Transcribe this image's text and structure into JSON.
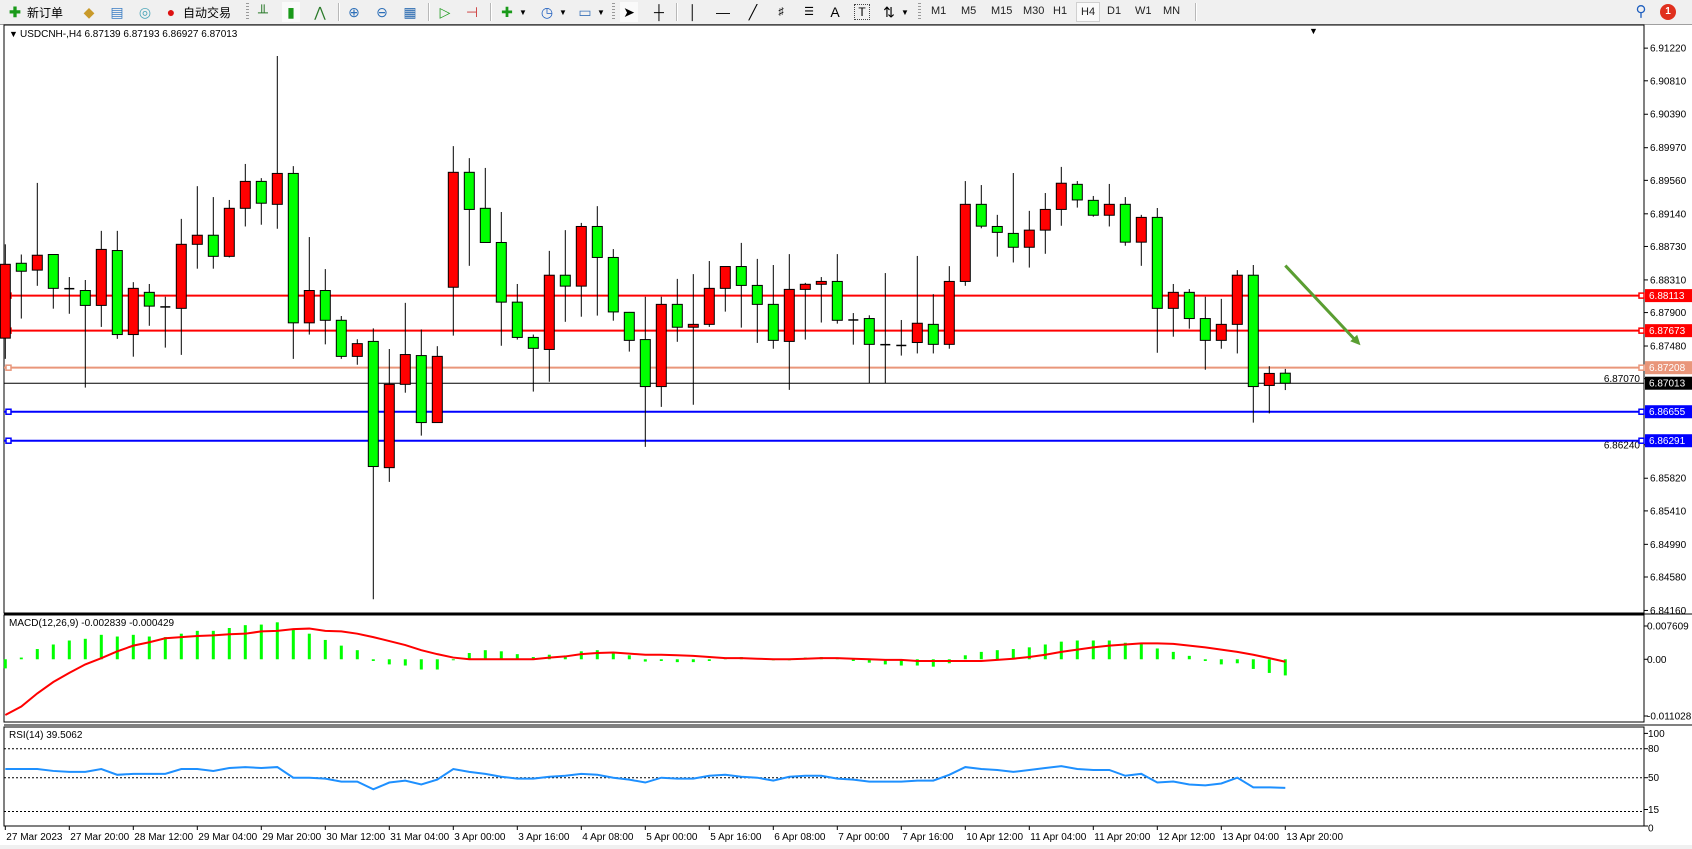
{
  "toolbar": {
    "new_order": "新订单",
    "auto_trading": "自动交易",
    "timeframes": [
      "M1",
      "M5",
      "M15",
      "M30",
      "H1",
      "H4",
      "D1",
      "W1",
      "MN"
    ],
    "selected_timeframe": "H4",
    "notification_count": "1",
    "icons": [
      "new-order-icon",
      "market-watch-icon",
      "navigator-icon",
      "signals-icon",
      "auto-trading-icon",
      "bar-chart-icon",
      "candlestick-icon",
      "line-chart-icon",
      "zoom-in-icon",
      "zoom-out-icon",
      "tile-windows-icon",
      "auto-scroll-icon",
      "chart-shift-icon",
      "indicators-icon",
      "periods-icon",
      "templates-icon",
      "cursor-icon",
      "crosshair-icon",
      "vertical-line-icon",
      "horizontal-line-icon",
      "trendline-icon",
      "fibonacci-icon",
      "fibonacci-fan-icon",
      "text-icon",
      "text-label-icon",
      "arrows-icon",
      "search-icon",
      "notification-icon"
    ]
  },
  "chart_data": {
    "type": "candlestick",
    "symbol_header": "USDCNH-,H4  6.87139 6.87193 6.86927 6.87013",
    "colors": {
      "bull": "#ff0000",
      "bear": "#00ff00",
      "outline": "#000000"
    },
    "ylim": [
      6.84128,
      6.91498
    ],
    "price_ticks": [
      "6.91220",
      "6.90810",
      "6.90390",
      "6.89970",
      "6.89560",
      "6.89140",
      "6.88730",
      "6.88310",
      "6.87900",
      "6.87480",
      "6.87070",
      "6.86240",
      "6.85820",
      "6.85410",
      "6.84990",
      "6.84580",
      "6.84160"
    ],
    "ohlc": [
      [
        6.87579,
        6.88757,
        6.87319,
        6.88506
      ],
      [
        6.88519,
        6.88629,
        6.87825,
        6.88419
      ],
      [
        6.88433,
        6.89528,
        6.88236,
        6.8862
      ],
      [
        6.88629,
        6.88629,
        6.87949,
        6.88204
      ],
      [
        6.882,
        6.88346,
        6.87885,
        6.882
      ],
      [
        6.88177,
        6.88309,
        6.86958,
        6.8799
      ],
      [
        6.8799,
        6.88926,
        6.8772,
        6.88693
      ],
      [
        6.88679,
        6.88926,
        6.8757,
        6.87624
      ],
      [
        6.87624,
        6.88282,
        6.87346,
        6.88204
      ],
      [
        6.88154,
        6.88259,
        6.87734,
        6.87981
      ],
      [
        6.87971,
        6.88099,
        6.8746,
        6.87971
      ],
      [
        6.87953,
        6.89076,
        6.87369,
        6.88757
      ],
      [
        6.88757,
        6.89487,
        6.88451,
        6.88871
      ],
      [
        6.88871,
        6.8935,
        6.88451,
        6.88606
      ],
      [
        6.88606,
        6.89314,
        6.88592,
        6.89209
      ],
      [
        6.89209,
        6.89766,
        6.88981,
        6.89547
      ],
      [
        6.89547,
        6.89588,
        6.89003,
        6.89273
      ],
      [
        6.89259,
        6.91122,
        6.88953,
        6.89647
      ],
      [
        6.89647,
        6.89738,
        6.87319,
        6.87771
      ],
      [
        6.87771,
        6.88848,
        6.87624,
        6.88177
      ],
      [
        6.88177,
        6.88446,
        6.87501,
        6.87803
      ],
      [
        6.87803,
        6.87857,
        6.87319,
        6.8735
      ],
      [
        6.8735,
        6.87565,
        6.87245,
        6.8751
      ],
      [
        6.87538,
        6.87702,
        6.843,
        6.85967
      ],
      [
        6.85953,
        6.87442,
        6.85775,
        6.86999
      ],
      [
        6.86999,
        6.88022,
        6.86894,
        6.87373
      ],
      [
        6.8736,
        6.87688,
        6.86355,
        6.86519
      ],
      [
        6.86519,
        6.87478,
        6.86519,
        6.8735
      ],
      [
        6.88218,
        6.8999,
        6.87611,
        6.89661
      ],
      [
        6.89661,
        6.89839,
        6.88487,
        6.89195
      ],
      [
        6.89209,
        6.89716,
        6.8878,
        6.8878
      ],
      [
        6.8878,
        6.89163,
        6.87483,
        6.88031
      ],
      [
        6.88031,
        6.88259,
        6.87561,
        6.87588
      ],
      [
        6.87588,
        6.87624,
        6.86908,
        6.87451
      ],
      [
        6.87437,
        6.88675,
        6.87031,
        6.88369
      ],
      [
        6.88369,
        6.88935,
        6.87784,
        6.88232
      ],
      [
        6.88232,
        6.89026,
        6.87848,
        6.88981
      ],
      [
        6.88981,
        6.89236,
        6.87862,
        6.88592
      ],
      [
        6.88592,
        6.88697,
        6.87798,
        6.87908
      ],
      [
        6.87903,
        6.87908,
        6.8741,
        6.87551
      ],
      [
        6.87561,
        6.88099,
        6.86214,
        6.86971
      ],
      [
        6.86971,
        6.88099,
        6.86716,
        6.88003
      ],
      [
        6.88003,
        6.88323,
        6.87533,
        6.87716
      ],
      [
        6.87716,
        6.88382,
        6.86743,
        6.87752
      ],
      [
        6.87752,
        6.88547,
        6.8772,
        6.88204
      ],
      [
        6.88204,
        6.88478,
        6.87912,
        6.88478
      ],
      [
        6.88478,
        6.88775,
        6.87711,
        6.88241
      ],
      [
        6.88241,
        6.88574,
        6.87519,
        6.88003
      ],
      [
        6.88003,
        6.88497,
        6.87446,
        6.87551
      ],
      [
        6.87538,
        6.88634,
        6.8693,
        6.88191
      ],
      [
        6.88191,
        6.88273,
        6.87561,
        6.88255
      ],
      [
        6.88255,
        6.88346,
        6.87775,
        6.88291
      ],
      [
        6.88291,
        6.88634,
        6.87761,
        6.87803
      ],
      [
        6.87807,
        6.87894,
        6.87497,
        6.87807
      ],
      [
        6.87825,
        6.87866,
        6.87013,
        6.87501
      ],
      [
        6.87497,
        6.88396,
        6.87013,
        6.87497
      ],
      [
        6.87487,
        6.87807,
        6.8736,
        6.87487
      ],
      [
        6.87524,
        6.88611,
        6.87387,
        6.87766
      ],
      [
        6.87752,
        6.88131,
        6.87387,
        6.87501
      ],
      [
        6.87501,
        6.88483,
        6.87446,
        6.88291
      ],
      [
        6.88291,
        6.89551,
        6.88236,
        6.89259
      ],
      [
        6.89259,
        6.89501,
        6.88958,
        6.88985
      ],
      [
        6.88981,
        6.89127,
        6.88602,
        6.88907
      ],
      [
        6.88894,
        6.89652,
        6.88529,
        6.8872
      ],
      [
        6.8872,
        6.89177,
        6.88465,
        6.88935
      ],
      [
        6.88935,
        6.89401,
        6.88638,
        6.89195
      ],
      [
        6.89195,
        6.89729,
        6.8899,
        6.89524
      ],
      [
        6.8951,
        6.89551,
        6.89218,
        6.89314
      ],
      [
        6.89309,
        6.89364,
        6.89104,
        6.89122
      ],
      [
        6.89122,
        6.89515,
        6.88981,
        6.89259
      ],
      [
        6.89259,
        6.8935,
        6.88739,
        6.88784
      ],
      [
        6.88784,
        6.89127,
        6.88487,
        6.89095
      ],
      [
        6.89095,
        6.89213,
        6.87396,
        6.87953
      ],
      [
        6.87953,
        6.88259,
        6.87597,
        6.88154
      ],
      [
        6.88154,
        6.88195,
        6.87698,
        6.87825
      ],
      [
        6.87825,
        6.88099,
        6.87182,
        6.87551
      ],
      [
        6.87551,
        6.88072,
        6.87446,
        6.87752
      ],
      [
        6.87752,
        6.88433,
        6.87387,
        6.88369
      ],
      [
        6.88369,
        6.88497,
        6.86519,
        6.86971
      ],
      [
        6.86985,
        6.87227,
        6.86634,
        6.87136
      ],
      [
        6.87139,
        6.87193,
        6.86927,
        6.87013
      ]
    ],
    "levels": [
      {
        "price": 6.88113,
        "label": "6.88113",
        "color": "#ff0000"
      },
      {
        "price": 6.87673,
        "label": "6.87673",
        "color": "#ff0000"
      },
      {
        "price": 6.87208,
        "label": "6.87208",
        "color": "#e9967a"
      },
      {
        "price": 6.86655,
        "label": "6.86655",
        "color": "#0000ff"
      },
      {
        "price": 6.86291,
        "label": "6.86291",
        "color": "#0000ff"
      }
    ],
    "bid": {
      "price": 6.87013,
      "label": "6.87013",
      "color": "#000000"
    },
    "arrow": {
      "from": {
        "bar": 80,
        "price": 6.8849
      },
      "to": {
        "bar": 84.7,
        "price": 6.8749
      },
      "color": "#5a9e32"
    },
    "time_labels": [
      "27 Mar 2023",
      "27 Mar 20:00",
      "28 Mar 12:00",
      "29 Mar 04:00",
      "29 Mar 20:00",
      "30 Mar 12:00",
      "31 Mar 04:00",
      "3 Apr 00:00",
      "3 Apr 16:00",
      "4 Apr 08:00",
      "5 Apr 00:00",
      "5 Apr 16:00",
      "6 Apr 08:00",
      "7 Apr 00:00",
      "7 Apr 16:00",
      "10 Apr 12:00",
      "11 Apr 04:00",
      "11 Apr 20:00",
      "12 Apr 12:00",
      "13 Apr 04:00",
      "13 Apr 20:00"
    ],
    "time_label_every_bars": 4,
    "macd": {
      "label": "MACD(12,26,9) -0.002839 -0.000429",
      "ylim": [
        -0.011028,
        0.007609
      ],
      "ticks": [
        "0.007609",
        "0.00",
        "-0.011028"
      ],
      "hist_color": "#00ff00",
      "signal_color": "#ff0000",
      "main": [
        -0.0016,
        0.0003,
        0.0018,
        0.0026,
        0.0033,
        0.0036,
        0.0043,
        0.004,
        0.0043,
        0.004,
        0.0039,
        0.0045,
        0.005,
        0.005,
        0.0055,
        0.006,
        0.0061,
        0.0065,
        0.0052,
        0.0045,
        0.0034,
        0.0024,
        0.0016,
        -0.0003,
        -0.0009,
        -0.0011,
        -0.0018,
        -0.0018,
        0.0,
        0.0011,
        0.0016,
        0.0014,
        0.0009,
        0.0004,
        0.0008,
        0.0004,
        0.0014,
        0.0016,
        0.0011,
        0.0007,
        -0.0004,
        -0.0003,
        -0.0005,
        -0.0005,
        -0.0003,
        0.0002,
        0.0004,
        0.0002,
        0.0,
        0.0,
        0.0003,
        0.0004,
        0.0002,
        -0.0003,
        -0.0006,
        -0.0009,
        -0.0011,
        -0.0011,
        -0.0013,
        -0.0007,
        0.0007,
        0.0013,
        0.0016,
        0.0018,
        0.0021,
        0.0026,
        0.0031,
        0.0033,
        0.0033,
        0.0033,
        0.0029,
        0.0028,
        0.0019,
        0.0013,
        0.0006,
        -0.0003,
        -0.0009,
        -0.0007,
        -0.0017,
        -0.0024,
        -0.002839
      ],
      "signal": [
        -0.0098,
        -0.0083,
        -0.006,
        -0.004,
        -0.0024,
        -0.0009,
        0.0002,
        0.0014,
        0.0024,
        0.003,
        0.0037,
        0.0039,
        0.0041,
        0.0042,
        0.0044,
        0.0045,
        0.0049,
        0.005,
        0.0053,
        0.0054,
        0.005,
        0.0049,
        0.0045,
        0.0039,
        0.0032,
        0.0025,
        0.0016,
        0.0009,
        0.0003,
        0.0,
        0.0,
        0.0,
        0.0,
        0.0,
        0.0003,
        0.0005,
        0.0009,
        0.0011,
        0.0012,
        0.001,
        0.0008,
        0.0008,
        0.0007,
        0.0006,
        0.0004,
        0.0002,
        0.0002,
        0.0001,
        0.0,
        0.0,
        0.0001,
        0.0002,
        0.0002,
        0.0001,
        0.0,
        -0.0001,
        -0.0001,
        -0.0003,
        -0.0003,
        -0.0003,
        -0.0003,
        -0.0003,
        -0.0001,
        0.0001,
        0.0004,
        0.0008,
        0.0013,
        0.0017,
        0.0021,
        0.0024,
        0.0026,
        0.0028,
        0.0028,
        0.0027,
        0.0024,
        0.0021,
        0.0017,
        0.0013,
        0.0008,
        0.0002,
        -0.000429
      ]
    },
    "rsi": {
      "label": "RSI(14) 39.5062",
      "ylim": [
        0,
        100
      ],
      "ticks": [
        "100",
        "80",
        "50",
        "15",
        "0"
      ],
      "levels": [
        80,
        50,
        15
      ],
      "color": "#1e90ff",
      "values": [
        59,
        59,
        59,
        57,
        56,
        56,
        59,
        53,
        54,
        54,
        54,
        59,
        59,
        57,
        60,
        61,
        60,
        61,
        50,
        50,
        49,
        46,
        46,
        38,
        45,
        47,
        43,
        48,
        59,
        56,
        54,
        51,
        49,
        49,
        51,
        52,
        54,
        53,
        50,
        48,
        45,
        50,
        49,
        49,
        52,
        53,
        51,
        50,
        47,
        51,
        52,
        52,
        49,
        48,
        46,
        46,
        46,
        47,
        47,
        53,
        61,
        59,
        58,
        56,
        58,
        60,
        62,
        59,
        58,
        58,
        52,
        54,
        45,
        46,
        43,
        42,
        44,
        50,
        40,
        40,
        39.5062
      ]
    }
  }
}
